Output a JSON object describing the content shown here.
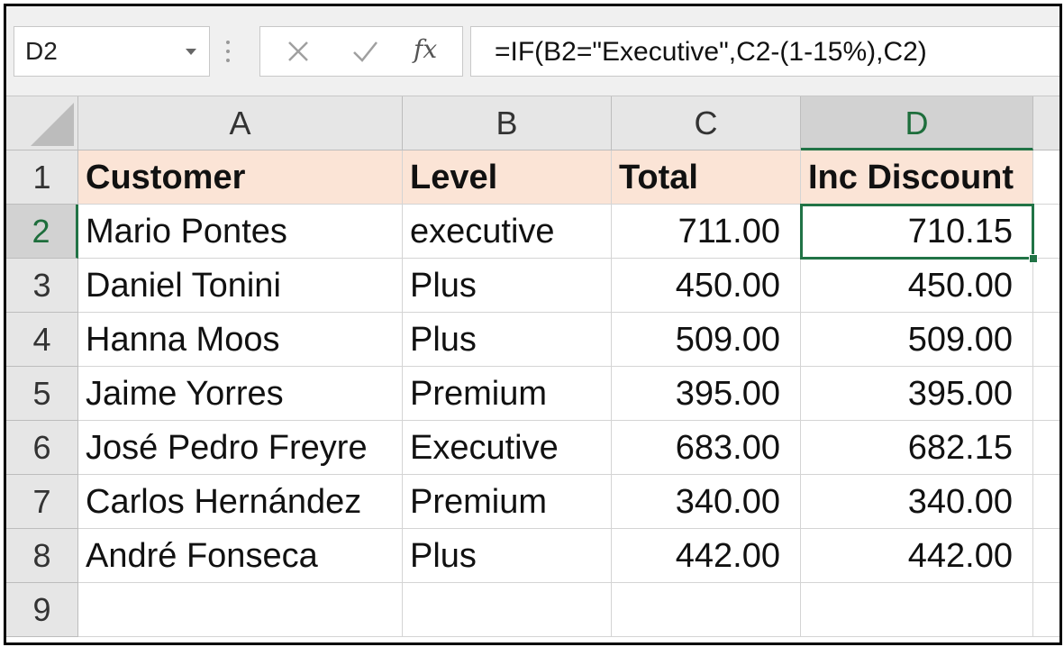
{
  "name_box": "D2",
  "formula": "=IF(B2=\"Executive\",C2-(1-15%),C2)",
  "icons": [
    "cancel-icon",
    "enter-check-icon",
    "insert-function-icon"
  ],
  "fx_label": "fx",
  "columns": [
    "A",
    "B",
    "C",
    "D"
  ],
  "rows": [
    "1",
    "2",
    "3",
    "4",
    "5",
    "6",
    "7",
    "8",
    "9"
  ],
  "selected_cell": "D2",
  "accent_color": "#217346",
  "header_fill": "#fbe4d6",
  "cells": [
    [
      "Customer",
      "Level",
      "Total",
      "Inc Discount"
    ],
    [
      "Mario Pontes",
      "executive",
      "711.00",
      "710.15"
    ],
    [
      "Daniel Tonini",
      "Plus",
      "450.00",
      "450.00"
    ],
    [
      "Hanna Moos",
      "Plus",
      "509.00",
      "509.00"
    ],
    [
      "Jaime Yorres",
      "Premium",
      "395.00",
      "395.00"
    ],
    [
      "José Pedro Freyre",
      "Executive",
      "683.00",
      "682.15"
    ],
    [
      "Carlos Hernández",
      "Premium",
      "340.00",
      "340.00"
    ],
    [
      "André Fonseca",
      "Plus",
      "442.00",
      "442.00"
    ],
    [
      "",
      "",
      "",
      ""
    ]
  ]
}
